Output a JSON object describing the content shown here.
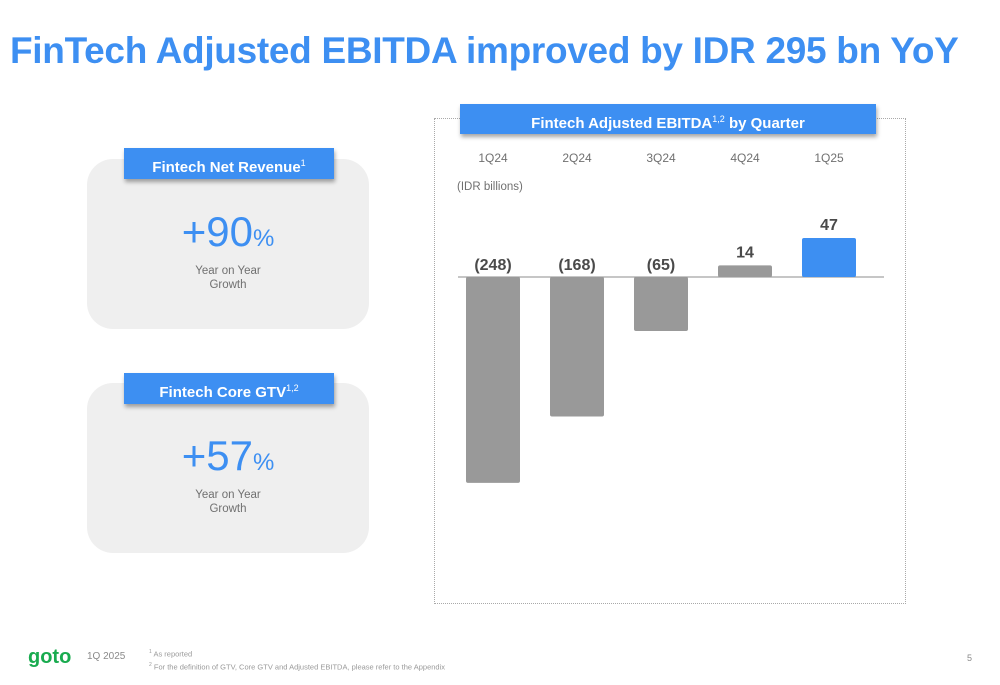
{
  "title": "FinTech Adjusted EBITDA improved by IDR 295 bn YoY",
  "kpis": [
    {
      "header": "Fintech Net Revenue",
      "header_sup": "1",
      "value": "+90",
      "unit": "%",
      "label_line1": "Year on Year",
      "label_line2": "Growth"
    },
    {
      "header": "Fintech Core GTV",
      "header_sup": "1,2",
      "value": "+57",
      "unit": "%",
      "label_line1": "Year on Year",
      "label_line2": "Growth"
    }
  ],
  "chart": {
    "header_prefix": "Fintech Adjusted EBITDA",
    "header_sup": "1,2",
    "header_suffix": " by Quarter",
    "units_label": "(IDR billions)"
  },
  "chart_data": {
    "type": "bar",
    "categories": [
      "1Q24",
      "2Q24",
      "3Q24",
      "4Q24",
      "1Q25"
    ],
    "values": [
      -248,
      -168,
      -65,
      14,
      47
    ],
    "data_labels": [
      "(248)",
      "(168)",
      "(65)",
      "14",
      "47"
    ],
    "title": "Fintech Adjusted EBITDA by Quarter",
    "ylabel": "(IDR billions)",
    "colors": [
      "#999999",
      "#999999",
      "#999999",
      "#999999",
      "#3d8ff2"
    ],
    "grid": false,
    "legend": "none"
  },
  "footer": {
    "logo_text": "goto",
    "period": "1Q 2025",
    "note1_sup": "1",
    "note1": "As reported",
    "note2_sup": "2",
    "note2": "For the definition of GTV, Core GTV and Adjusted EBITDA, please refer to the Appendix",
    "page": "5"
  },
  "colors": {
    "accent": "#3d8ff2",
    "negative_bar": "#999999",
    "logo": "#19ab4f",
    "card_bg": "#efefef"
  }
}
